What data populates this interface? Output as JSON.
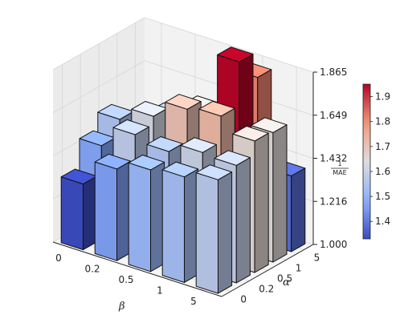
{
  "chart_data": {
    "type": "bar3d",
    "xlabel": "β",
    "ylabel": "α",
    "zlabel_num": "1",
    "zlabel_den": "MAE",
    "x_categories": [
      "0",
      "0.2",
      "0.5",
      "1",
      "5"
    ],
    "y_categories": [
      "0",
      "0.2",
      "0.5",
      "1",
      "5"
    ],
    "zlim": [
      1.0,
      1.865
    ],
    "z_ticks": [
      "1.000",
      "1.216",
      "1.432",
      "1.649",
      "1.865"
    ],
    "colorbar": {
      "min": 1.33,
      "max": 1.95,
      "ticks": [
        "1.4",
        "1.5",
        "1.6",
        "1.7",
        "1.8",
        "1.9"
      ],
      "colormap": "coolwarm"
    },
    "values": [
      [
        1.33,
        1.47,
        1.55,
        1.39,
        1.42
      ],
      [
        1.46,
        1.58,
        1.62,
        1.56,
        1.4
      ],
      [
        1.51,
        1.55,
        1.71,
        1.65,
        1.52
      ],
      [
        1.53,
        1.6,
        1.73,
        1.95,
        1.82
      ],
      [
        1.57,
        1.59,
        1.66,
        1.65,
        1.38
      ]
    ]
  }
}
